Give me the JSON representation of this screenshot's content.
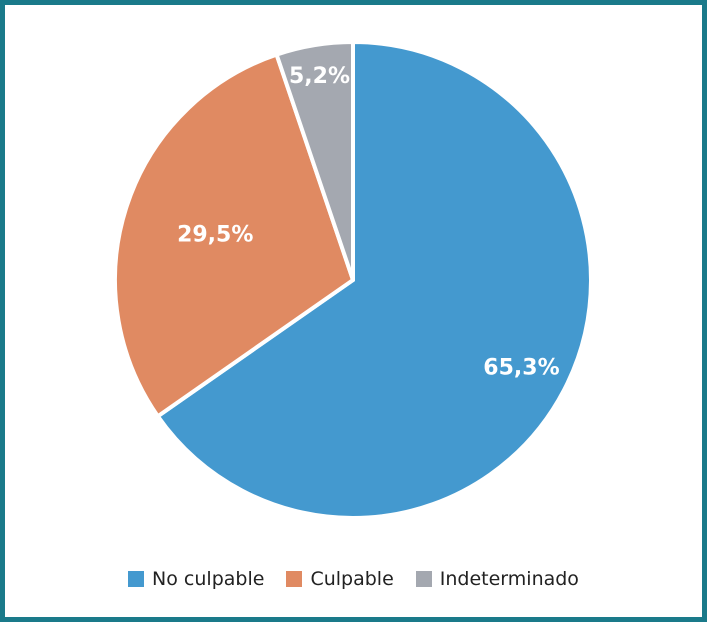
{
  "chart_data": {
    "type": "pie",
    "slices": [
      {
        "name": "No culpable",
        "value": 65.3,
        "label": "65,3%",
        "color": "#4499cf"
      },
      {
        "name": "Culpable",
        "value": 29.5,
        "label": "29,5%",
        "color": "#e08a62"
      },
      {
        "name": "Indeterminado",
        "value": 5.2,
        "label": "5,2%",
        "color": "#a4a8b0"
      }
    ],
    "start_angle": "12 o'clock",
    "direction": "clockwise",
    "legend_position": "bottom"
  }
}
